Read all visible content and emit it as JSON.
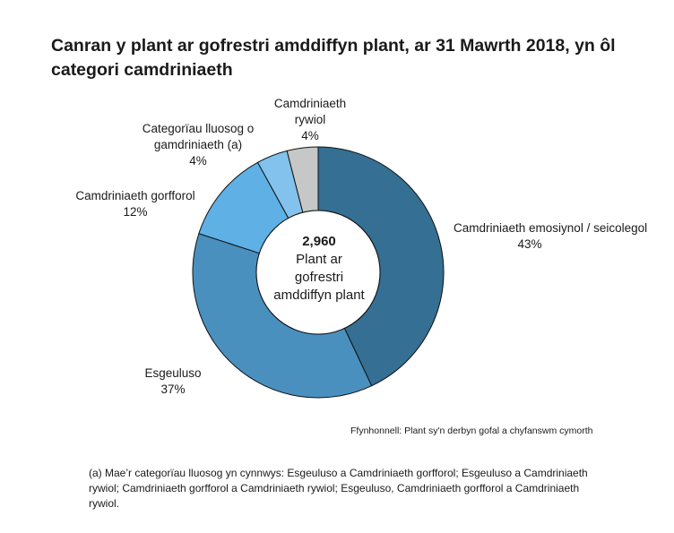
{
  "chart_data": {
    "type": "pie",
    "title": "Canran y plant ar gofrestri amddiffyn plant, ar 31 Mawrth 2018, yn ôl categori camdriniaeth",
    "center": {
      "value": "2,960",
      "text": "Plant ar gofrestri amddiffyn plant"
    },
    "slices": [
      {
        "label": "Camdriniaeth emosiynol / seicolegol",
        "value": 43,
        "value_label": "43%",
        "color": "#356f93"
      },
      {
        "label": "Esgeuluso",
        "value": 37,
        "value_label": "37%",
        "color": "#4a90bf"
      },
      {
        "label": "Camdriniaeth gorfforol",
        "value": 12,
        "value_label": "12%",
        "color": "#5eb0e5"
      },
      {
        "label": "Categorïau lluosog o gamdriniaeth (a)",
        "value": 4,
        "value_label": "4%",
        "color": "#82c2ec"
      },
      {
        "label": "Camdriniaeth rywiol",
        "value": 4,
        "value_label": "4%",
        "color": "#c6c8c8"
      }
    ],
    "source": "Ffynhonnell: Plant sy'n derbyn gofal a chyfanswm cymorth",
    "footnote": "(a) Mae’r categorïau lluosog yn cynnwys: Esgeuluso a Camdriniaeth gorfforol; Esgeuluso a Camdriniaeth rywiol; Camdriniaeth gorfforol a Camdriniaeth rywiol; Esgeuluso, Camdriniaeth gorfforol a Camdriniaeth rywiol."
  }
}
